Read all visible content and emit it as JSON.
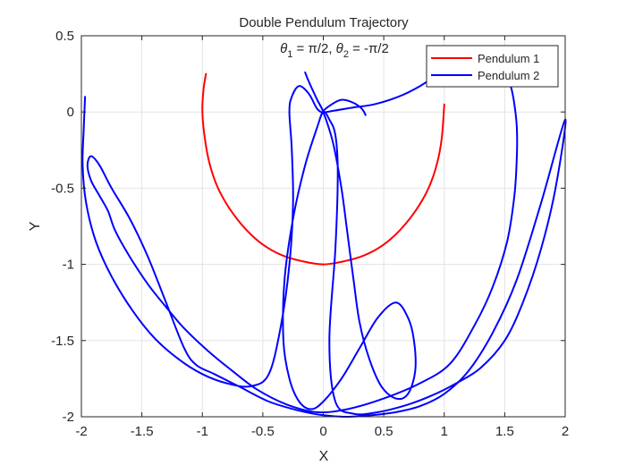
{
  "chart_data": {
    "type": "line",
    "title": "Double Pendulum Trajectory",
    "subtitle": "θ1 = π/2, θ2 = -π/2",
    "subtitle_parts": {
      "sym1": "θ",
      "sub1": "1",
      "rest1": " = π/2, ",
      "sym2": "θ",
      "sub2": "2",
      "rest2": " = -π/2"
    },
    "xlabel": "X",
    "ylabel": "Y",
    "xlim": [
      -2,
      2
    ],
    "ylim": [
      -2,
      0.5
    ],
    "xticks": [
      -2,
      -1.5,
      -1,
      -0.5,
      0,
      0.5,
      1,
      1.5,
      2
    ],
    "xtick_labels": [
      "-2",
      "-1.5",
      "-1",
      "-0.5",
      "0",
      "0.5",
      "1",
      "1.5",
      "2"
    ],
    "yticks": [
      -2,
      -1.5,
      -1,
      -0.5,
      0,
      0.5
    ],
    "ytick_labels": [
      "-2",
      "-1.5",
      "-1",
      "-0.5",
      "0",
      "0.5"
    ],
    "grid": true,
    "legend_position": "top-right",
    "series": [
      {
        "name": "Pendulum 1",
        "color": "#ff0000",
        "x": [
          -0.97,
          -0.99,
          -1.0,
          -0.98,
          -0.94,
          -0.87,
          -0.77,
          -0.64,
          -0.5,
          -0.34,
          -0.17,
          0.0,
          0.17,
          0.34,
          0.5,
          0.64,
          0.77,
          0.87,
          0.94,
          0.98,
          1.0
        ],
        "y": [
          0.25,
          0.15,
          0.0,
          -0.17,
          -0.34,
          -0.5,
          -0.64,
          -0.77,
          -0.87,
          -0.94,
          -0.98,
          -1.0,
          -0.98,
          -0.94,
          -0.87,
          -0.77,
          -0.64,
          -0.5,
          -0.34,
          -0.17,
          0.05
        ]
      },
      {
        "name": "Pendulum 2",
        "color": "#0000ff",
        "x": [
          -1.97,
          -1.98,
          -1.99,
          -1.96,
          -1.88,
          -1.75,
          -1.58,
          -1.4,
          -1.2,
          -1.0,
          -0.8,
          -0.6,
          -0.45,
          -0.35,
          -0.28,
          -0.25,
          -0.26,
          -0.28,
          -0.26,
          -0.2,
          -0.12,
          -0.05,
          0.0,
          -0.05,
          -0.12,
          -0.15,
          -0.12,
          -0.05,
          0.0,
          0.08,
          0.15,
          0.2,
          0.25,
          0.3,
          0.38,
          0.48,
          0.6,
          0.7,
          0.76,
          0.75,
          0.7,
          0.6,
          0.45,
          0.3,
          0.15,
          0.0,
          -0.1,
          -0.2,
          -0.28,
          -0.33,
          -0.32,
          -0.25,
          -0.15,
          -0.05,
          0.0,
          0.05,
          0.1,
          0.12,
          0.1,
          0.05,
          0.1,
          0.25,
          0.45,
          0.7,
          0.9,
          1.1,
          1.3,
          1.5,
          1.65,
          1.8,
          1.92,
          2.0,
          1.8,
          1.6,
          1.4,
          1.2,
          1.0,
          0.8,
          0.6,
          0.4,
          0.2,
          0.0,
          -0.2,
          -0.45,
          -0.7,
          -0.9,
          -1.05,
          -1.15,
          -1.3,
          -1.45,
          -1.6,
          -1.75,
          -1.85,
          -1.92,
          -1.95,
          -1.92,
          -1.85,
          -1.78,
          -1.72,
          -1.6,
          -1.45,
          -1.3,
          -1.15,
          -0.95,
          -0.75,
          -0.55,
          -0.3,
          -0.05,
          0.2,
          0.5,
          0.8,
          1.05,
          1.25,
          1.4,
          1.52,
          1.58,
          1.6,
          1.6,
          1.58,
          1.55,
          1.5,
          1.43,
          1.33,
          1.2,
          1.08,
          0.95,
          0.8,
          0.62,
          0.42,
          0.25,
          0.1,
          0.0,
          0.05,
          0.15,
          0.25,
          0.32,
          0.35
        ],
        "y": [
          0.1,
          -0.1,
          -0.35,
          -0.6,
          -0.85,
          -1.08,
          -1.3,
          -1.48,
          -1.62,
          -1.72,
          -1.78,
          -1.8,
          -1.72,
          -1.4,
          -1.0,
          -0.6,
          -0.25,
          0.0,
          0.1,
          0.17,
          0.12,
          0.02,
          0.0,
          0.08,
          0.2,
          0.26,
          0.2,
          0.08,
          0.0,
          -0.2,
          -0.5,
          -0.8,
          -1.1,
          -1.38,
          -1.62,
          -1.8,
          -1.88,
          -1.85,
          -1.7,
          -1.5,
          -1.35,
          -1.25,
          -1.35,
          -1.55,
          -1.75,
          -1.9,
          -1.95,
          -1.9,
          -1.75,
          -1.5,
          -1.1,
          -0.7,
          -0.35,
          -0.1,
          0.0,
          -0.05,
          -0.15,
          -0.4,
          -0.9,
          -1.5,
          -1.9,
          -1.98,
          -1.97,
          -1.92,
          -1.86,
          -1.78,
          -1.68,
          -1.5,
          -1.25,
          -0.9,
          -0.5,
          -0.05,
          -0.6,
          -1.1,
          -1.45,
          -1.7,
          -1.85,
          -1.93,
          -1.97,
          -1.99,
          -2.0,
          -1.99,
          -1.96,
          -1.9,
          -1.8,
          -1.72,
          -1.66,
          -1.55,
          -1.25,
          -0.95,
          -0.7,
          -0.5,
          -0.35,
          -0.29,
          -0.35,
          -0.45,
          -0.55,
          -0.65,
          -0.78,
          -0.95,
          -1.13,
          -1.28,
          -1.42,
          -1.57,
          -1.7,
          -1.82,
          -1.92,
          -1.97,
          -1.95,
          -1.88,
          -1.78,
          -1.65,
          -1.4,
          -1.15,
          -0.85,
          -0.55,
          -0.3,
          -0.1,
          0.05,
          0.17,
          0.27,
          0.35,
          0.39,
          0.38,
          0.33,
          0.25,
          0.17,
          0.1,
          0.05,
          0.03,
          0.01,
          0.0,
          0.04,
          0.08,
          0.06,
          0.02,
          -0.02
        ]
      }
    ]
  }
}
